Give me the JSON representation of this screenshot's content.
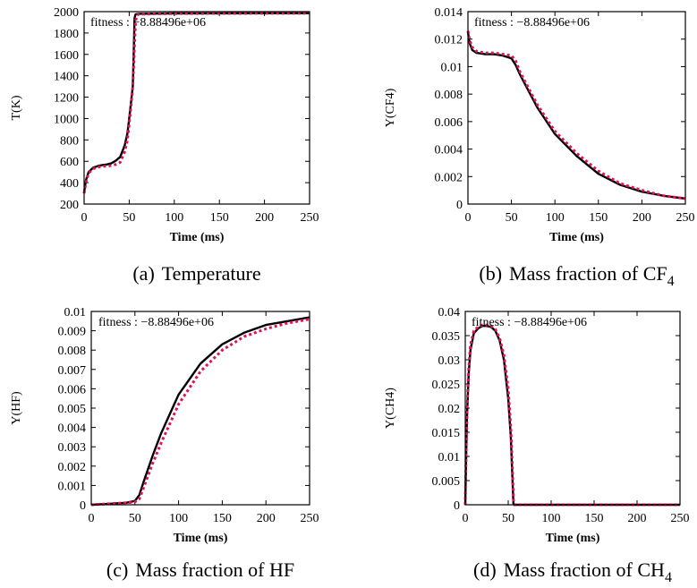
{
  "chart_data": [
    {
      "type": "line",
      "caption": {
        "prefix": "(a)",
        "text": "Temperature",
        "sub": ""
      },
      "annotation": "fitness : −8.88496e+06",
      "xlabel": "Time (ms)",
      "ylabel": "T(K)",
      "xlim": [
        0,
        250
      ],
      "ylim": [
        200,
        2000
      ],
      "xticks": [
        "0",
        "50",
        "100",
        "150",
        "200",
        "250"
      ],
      "yticks": [
        "200",
        "400",
        "600",
        "800",
        "1000",
        "1200",
        "1400",
        "1600",
        "1800",
        "2000"
      ],
      "series": [
        {
          "color": "#000000",
          "style": "solid",
          "x": [
            0,
            2,
            5,
            10,
            15,
            20,
            25,
            30,
            35,
            40,
            45,
            48,
            50,
            52,
            54,
            55,
            56,
            57,
            60,
            80,
            100,
            150,
            200,
            250
          ],
          "y": [
            310,
            420,
            500,
            540,
            555,
            565,
            570,
            580,
            605,
            640,
            750,
            860,
            1000,
            1150,
            1300,
            1600,
            1940,
            1975,
            1980,
            1982,
            1983,
            1984,
            1985,
            1985
          ]
        },
        {
          "color": "#e0105a",
          "style": "dotted",
          "x": [
            0,
            2,
            5,
            10,
            15,
            20,
            25,
            30,
            35,
            40,
            45,
            48,
            50,
            52,
            54,
            55,
            56,
            57,
            58,
            60,
            80,
            100,
            150,
            200,
            250
          ],
          "y": [
            300,
            400,
            490,
            530,
            545,
            552,
            555,
            560,
            570,
            590,
            690,
            800,
            950,
            1120,
            1300,
            1500,
            1700,
            1900,
            1960,
            1975,
            1980,
            1982,
            1983,
            1984,
            1985
          ]
        }
      ]
    },
    {
      "type": "line",
      "caption": {
        "prefix": "(b)",
        "text": "Mass fraction of CF",
        "sub": "4"
      },
      "annotation": "fitness : −8.88496e+06",
      "xlabel": "Time (ms)",
      "ylabel": "Y(CF4)",
      "xlim": [
        0,
        250
      ],
      "ylim": [
        0,
        0.014
      ],
      "xticks": [
        "0",
        "50",
        "100",
        "150",
        "200",
        "250"
      ],
      "yticks": [
        "0",
        "0.002",
        "0.004",
        "0.006",
        "0.008",
        "0.01",
        "0.012",
        "0.014"
      ],
      "series": [
        {
          "color": "#000000",
          "style": "solid",
          "x": [
            0,
            2,
            5,
            10,
            20,
            30,
            40,
            50,
            55,
            60,
            70,
            80,
            100,
            125,
            150,
            175,
            200,
            225,
            250
          ],
          "y": [
            0.0125,
            0.0117,
            0.0112,
            0.011,
            0.0109,
            0.0109,
            0.0108,
            0.0106,
            0.0101,
            0.0094,
            0.0082,
            0.007,
            0.0051,
            0.0035,
            0.0022,
            0.0014,
            0.0009,
            0.0006,
            0.0004
          ]
        },
        {
          "color": "#e0105a",
          "style": "dotted",
          "x": [
            0,
            2,
            5,
            10,
            20,
            30,
            40,
            50,
            55,
            60,
            70,
            80,
            100,
            125,
            150,
            175,
            200,
            225,
            250
          ],
          "y": [
            0.0126,
            0.0119,
            0.0114,
            0.0111,
            0.011,
            0.011,
            0.0109,
            0.0108,
            0.0104,
            0.0096,
            0.0084,
            0.0072,
            0.0053,
            0.0037,
            0.0024,
            0.0015,
            0.001,
            0.0006,
            0.0004
          ]
        }
      ]
    },
    {
      "type": "line",
      "caption": {
        "prefix": "(c)",
        "text": "Mass fraction of HF",
        "sub": ""
      },
      "annotation": "fitness : −8.88496e+06",
      "xlabel": "Time (ms)",
      "ylabel": "Y(HF)",
      "xlim": [
        0,
        250
      ],
      "ylim": [
        0,
        0.01
      ],
      "xticks": [
        "0",
        "50",
        "100",
        "150",
        "200",
        "250"
      ],
      "yticks": [
        "0",
        "0.001",
        "0.002",
        "0.003",
        "0.004",
        "0.005",
        "0.006",
        "0.007",
        "0.008",
        "0.009",
        "0.01"
      ],
      "series": [
        {
          "color": "#000000",
          "style": "solid",
          "x": [
            0,
            20,
            40,
            50,
            55,
            60,
            70,
            80,
            100,
            125,
            150,
            175,
            200,
            225,
            250
          ],
          "y": [
            0,
            5e-05,
            0.0001,
            0.0002,
            0.0005,
            0.0012,
            0.0025,
            0.0037,
            0.0057,
            0.0073,
            0.0083,
            0.0089,
            0.0093,
            0.0095,
            0.0097
          ]
        },
        {
          "color": "#e0105a",
          "style": "dotted",
          "x": [
            0,
            20,
            40,
            50,
            55,
            60,
            70,
            80,
            100,
            125,
            150,
            175,
            200,
            225,
            250
          ],
          "y": [
            0,
            5e-05,
            0.0001,
            0.00015,
            0.0003,
            0.0009,
            0.0021,
            0.0032,
            0.0052,
            0.0069,
            0.008,
            0.0087,
            0.0091,
            0.0094,
            0.0096
          ]
        }
      ]
    },
    {
      "type": "line",
      "caption": {
        "prefix": "(d)",
        "text": "Mass fraction of CH",
        "sub": "4"
      },
      "annotation": "fitness : −8.88496e+06",
      "xlabel": "Time (ms)",
      "ylabel": "Y(CH4)",
      "xlim": [
        0,
        250
      ],
      "ylim": [
        0,
        0.04
      ],
      "xticks": [
        "0",
        "50",
        "100",
        "150",
        "200",
        "250"
      ],
      "yticks": [
        "0",
        "0.005",
        "0.01",
        "0.015",
        "0.02",
        "0.025",
        "0.03",
        "0.035",
        "0.04"
      ],
      "series": [
        {
          "color": "#000000",
          "style": "solid",
          "x": [
            0,
            1,
            2,
            4,
            6,
            10,
            15,
            20,
            25,
            30,
            35,
            40,
            45,
            50,
            53,
            55,
            56,
            57,
            60,
            100,
            150,
            200,
            250
          ],
          "y": [
            0,
            0.01,
            0.018,
            0.027,
            0.032,
            0.0355,
            0.0365,
            0.037,
            0.037,
            0.0368,
            0.036,
            0.034,
            0.03,
            0.022,
            0.014,
            0.005,
            0.0003,
            0,
            0,
            0,
            0,
            0,
            0
          ]
        },
        {
          "color": "#e0105a",
          "style": "dotted",
          "x": [
            0,
            1,
            2,
            4,
            6,
            10,
            15,
            20,
            25,
            30,
            35,
            40,
            45,
            50,
            53,
            55,
            56,
            57,
            60,
            100,
            150,
            200,
            250
          ],
          "y": [
            0,
            0.011,
            0.019,
            0.028,
            0.033,
            0.036,
            0.0368,
            0.0372,
            0.0372,
            0.037,
            0.0363,
            0.0345,
            0.031,
            0.024,
            0.016,
            0.007,
            0.001,
            0,
            0,
            0,
            0,
            0,
            0
          ]
        }
      ]
    }
  ]
}
